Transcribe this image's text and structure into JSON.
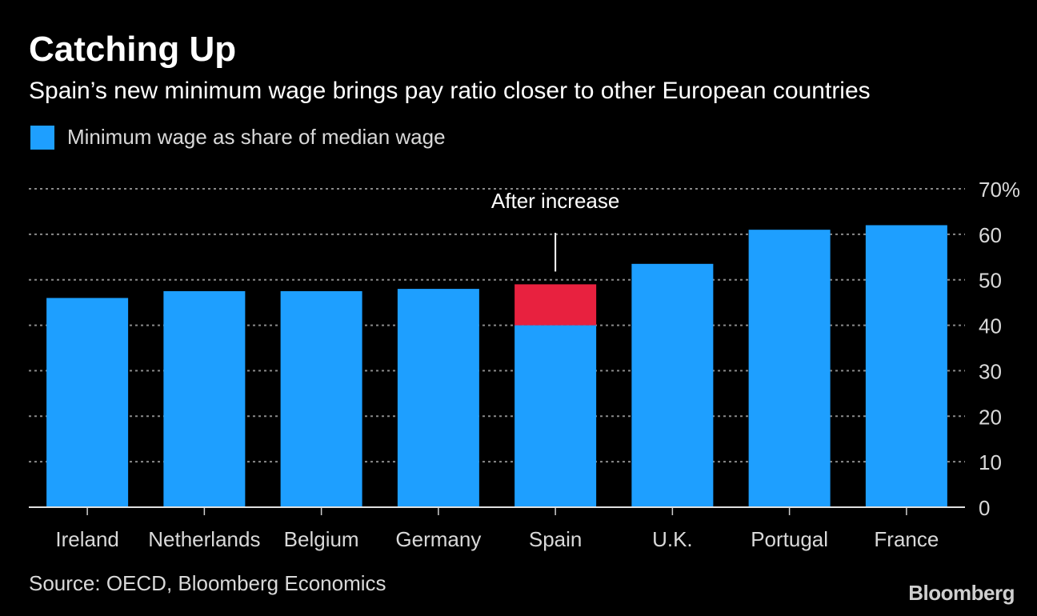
{
  "header": {
    "title": "Catching Up",
    "subtitle": "Spain’s new minimum wage brings pay ratio closer to other European countries"
  },
  "legend": {
    "label": "Minimum wage as share of median wage"
  },
  "footer": {
    "source": "Source: OECD, Bloomberg Economics",
    "brand": "Bloomberg"
  },
  "colors": {
    "bar": "#1e9fff",
    "increase": "#e8213f",
    "background": "#000000",
    "grid": "#8a8a8a",
    "axis_text": "#d9d9d9"
  },
  "chart_data": {
    "type": "bar",
    "categories": [
      "Ireland",
      "Netherlands",
      "Belgium",
      "Germany",
      "Spain",
      "U.K.",
      "Portugal",
      "France"
    ],
    "series": [
      {
        "name": "Minimum wage as share of median wage",
        "values": [
          46,
          47.5,
          47.5,
          48,
          40,
          53.5,
          61,
          62
        ]
      },
      {
        "values": [
          0,
          0,
          0,
          0,
          9,
          0,
          0,
          0
        ]
      }
    ],
    "stacked": true,
    "ylim": [
      0,
      70
    ],
    "yticks": [
      0,
      10,
      20,
      30,
      40,
      50,
      60,
      70
    ],
    "ytick_labels": [
      "0",
      "10",
      "20",
      "30",
      "40",
      "50",
      "60",
      "70%"
    ],
    "grid": true,
    "y_axis_side": "right",
    "annotations": [
      {
        "text": "After increase",
        "category": "Spain"
      }
    ]
  }
}
